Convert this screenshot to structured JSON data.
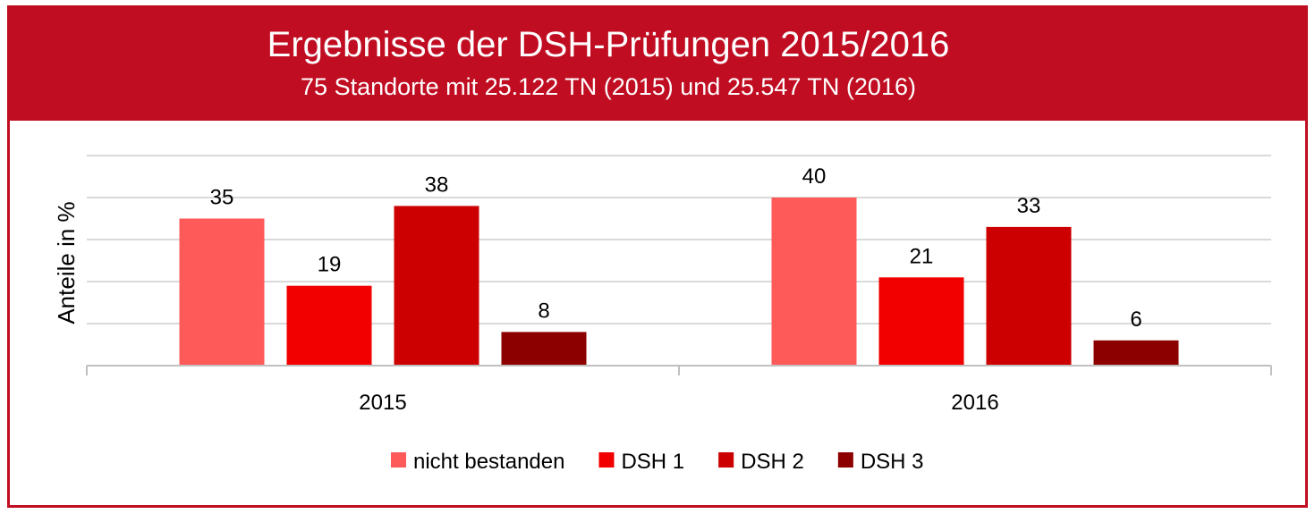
{
  "chart_data": {
    "type": "bar",
    "title": "Ergebnisse der DSH-Prüfungen 2015/2016",
    "subtitle": "75 Standorte mit 25.122 TN (2015) und 25.547 TN (2016)",
    "ylabel": "Anteile in %",
    "xlabel": "",
    "ylim": [
      0,
      50
    ],
    "grid": true,
    "legend_position": "bottom",
    "categories": [
      "2015",
      "2016"
    ],
    "series": [
      {
        "name": "nicht bestanden",
        "values": [
          35,
          40
        ],
        "color": "#ff5a5a"
      },
      {
        "name": "DSH 1",
        "values": [
          19,
          21
        ],
        "color": "#f20000"
      },
      {
        "name": "DSH 2",
        "values": [
          38,
          33
        ],
        "color": "#cc0000"
      },
      {
        "name": "DSH 3",
        "values": [
          8,
          6
        ],
        "color": "#8c0000"
      }
    ]
  },
  "colors": {
    "header": "#c00d22",
    "grid": "#d9d9d9",
    "axis": "#bfbfbf"
  }
}
